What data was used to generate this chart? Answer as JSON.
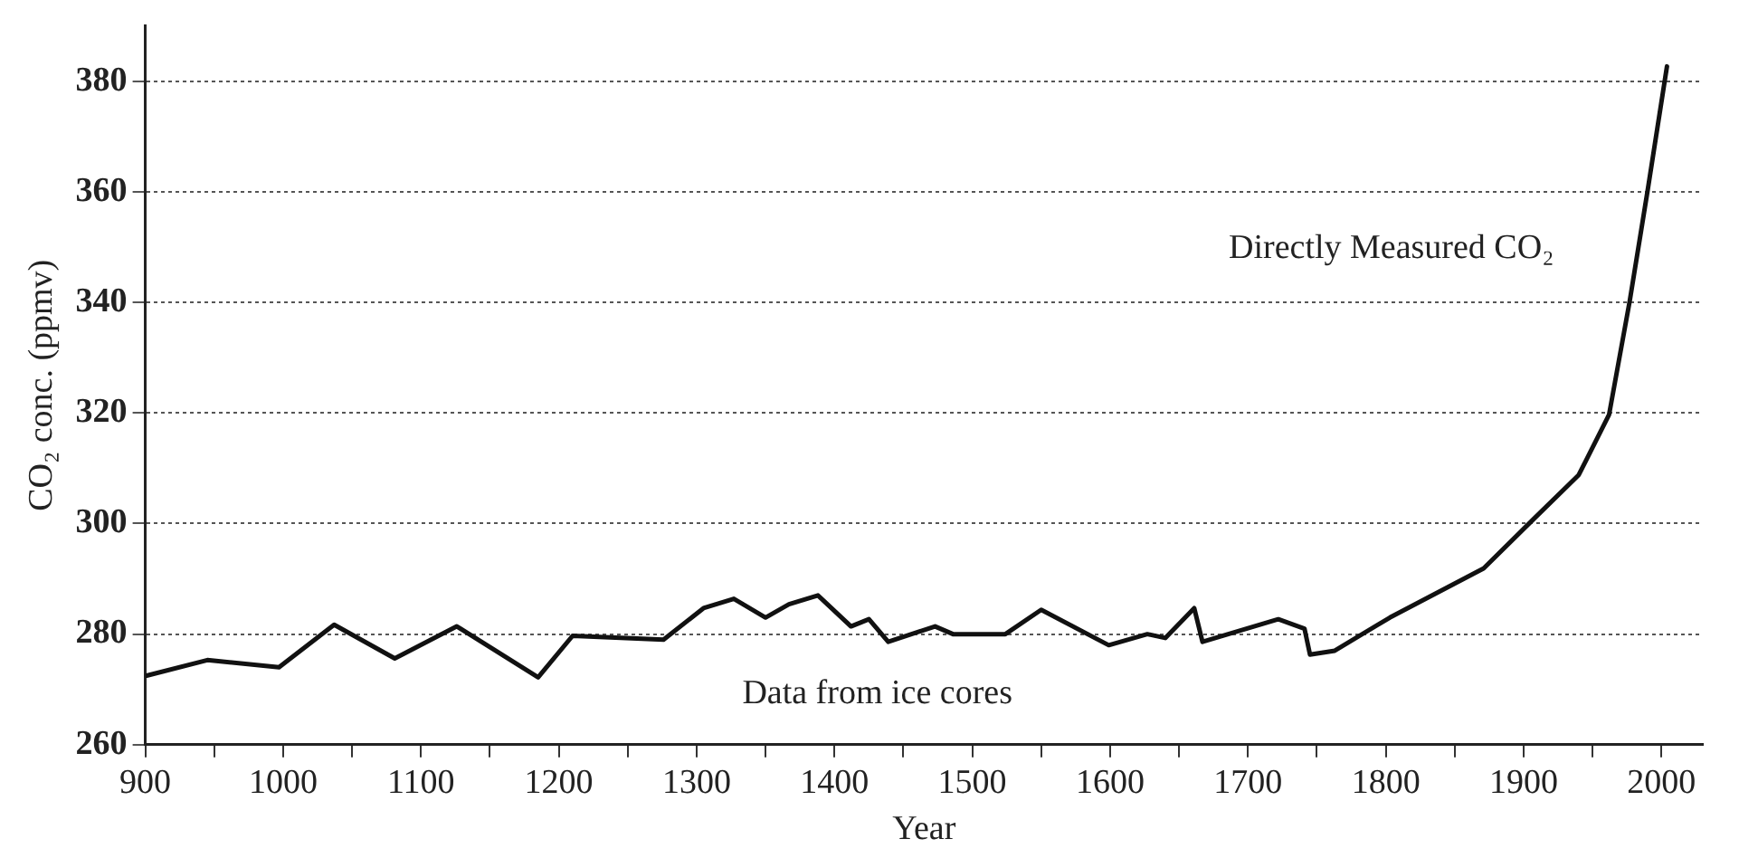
{
  "chart_data": {
    "type": "line",
    "xlabel": "Year",
    "ylabel": "CO₂ conc. (ppmv)",
    "x": [
      901,
      945,
      997,
      1037,
      1081,
      1126,
      1185,
      1210,
      1276,
      1305,
      1327,
      1350,
      1367,
      1388,
      1412,
      1425,
      1439,
      1473,
      1486,
      1524,
      1550,
      1599,
      1627,
      1640,
      1661,
      1667,
      1722,
      1741,
      1745,
      1763,
      1803,
      1871,
      1908,
      1940,
      1962,
      1977,
      1990,
      2004
    ],
    "series": [
      {
        "color": "#111111",
        "values": [
          272.5,
          275.3,
          274,
          281.7,
          275.6,
          281.4,
          272.2,
          279.7,
          279,
          284.7,
          286.4,
          283,
          285.4,
          287,
          281.4,
          282.7,
          278.6,
          281.4,
          280,
          280,
          284.4,
          278,
          280,
          279.3,
          284.7,
          278.6,
          282.7,
          281,
          276.3,
          277,
          283,
          291.9,
          301,
          308.8,
          319.7,
          340.3,
          360.3,
          382.7
        ]
      }
    ],
    "xlim": [
      900,
      2030
    ],
    "xticks": [
      900,
      {
        "value": 950,
        "label": null
      },
      1000,
      {
        "value": 1050,
        "label": null
      },
      1100,
      {
        "value": 1150,
        "label": null
      },
      1200,
      {
        "value": 1250,
        "label": null
      },
      1300,
      {
        "value": 1350,
        "label": null
      },
      1400,
      {
        "value": 1450,
        "label": null
      },
      1500,
      {
        "value": 1550,
        "label": null
      },
      1600,
      {
        "value": 1650,
        "label": null
      },
      1700,
      {
        "value": 1750,
        "label": null
      },
      1800,
      {
        "value": 1850,
        "label": null
      },
      1900,
      {
        "value": 1950,
        "label": null
      },
      2000
    ],
    "ylim": [
      260,
      390
    ],
    "yticks": [
      260,
      280,
      300,
      320,
      340,
      360,
      380
    ],
    "grid": "y",
    "marker": "none",
    "line_style": "solid",
    "legend": false,
    "annotations": [
      "Directly Measured CO₂",
      "Data from ice cores"
    ]
  }
}
